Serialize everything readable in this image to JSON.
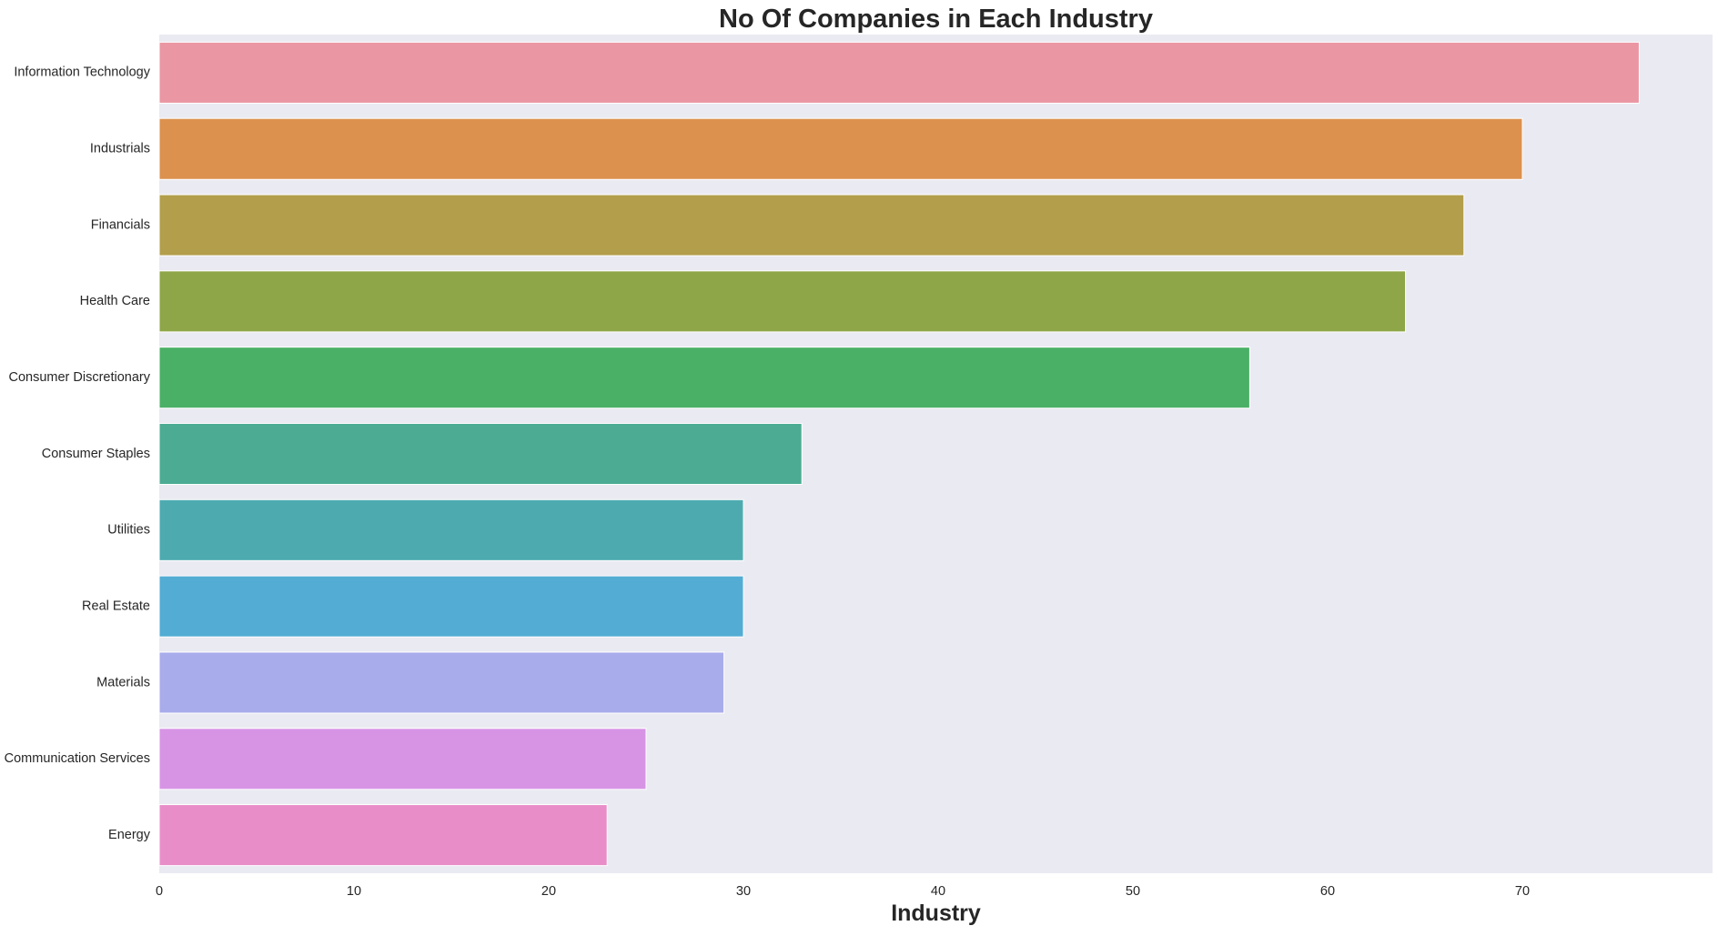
{
  "chart_data": {
    "type": "bar",
    "orientation": "horizontal",
    "title": "No Of Companies in Each Industry",
    "xlabel": "Industry",
    "ylabel": "",
    "xlim": [
      0,
      80
    ],
    "xticks": [
      0,
      10,
      20,
      30,
      40,
      50,
      60,
      70
    ],
    "grid": false,
    "background_color": "#EAEAF2",
    "categories": [
      "Information Technology",
      "Industrials",
      "Financials",
      "Health Care",
      "Consumer Discretionary",
      "Consumer Staples",
      "Utilities",
      "Real Estate",
      "Materials",
      "Communication Services",
      "Energy"
    ],
    "values": [
      76,
      70,
      67,
      64,
      56,
      33,
      30,
      30,
      29,
      25,
      23
    ],
    "colors": [
      "#EA96A3",
      "#DC914E",
      "#B39E4B",
      "#8EA648",
      "#4AB066",
      "#4BAC93",
      "#4DABB0",
      "#52ACD4",
      "#A9ACEB",
      "#D794E5",
      "#E98DC9"
    ]
  }
}
